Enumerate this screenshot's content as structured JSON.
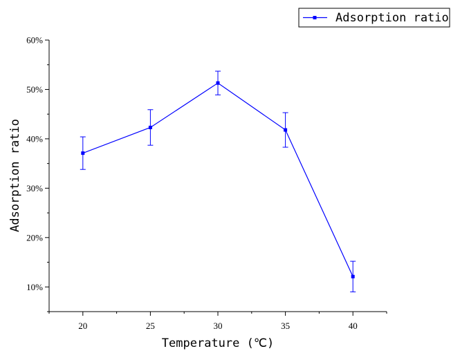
{
  "chart_data": {
    "type": "line",
    "xlabel": "Temperature (℃)",
    "ylabel": "Adsorption ratio",
    "x": [
      20,
      25,
      30,
      35,
      40
    ],
    "x_ticks": [
      "20",
      "25",
      "30",
      "35",
      "40"
    ],
    "xlim": [
      17.5,
      42.5
    ],
    "ylim": [
      5,
      60
    ],
    "y_ticks": [
      "10%",
      "20%",
      "30%",
      "40%",
      "50%",
      "60%"
    ],
    "y_tick_values": [
      10,
      20,
      30,
      40,
      50,
      60
    ],
    "grid": false,
    "legend_position": "top-right",
    "series": [
      {
        "name": "Adsorption ratio",
        "color": "#0000ff",
        "marker": "square",
        "values": [
          37.1,
          42.3,
          51.3,
          41.8,
          12.1
        ],
        "error": [
          3.3,
          3.6,
          2.4,
          3.5,
          3.1
        ]
      }
    ]
  }
}
